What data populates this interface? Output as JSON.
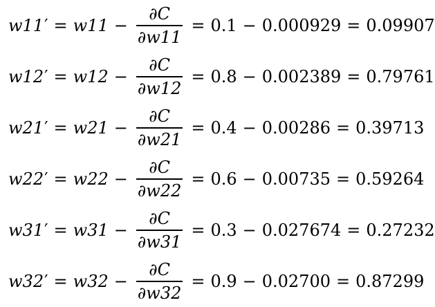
{
  "equations": [
    {
      "lhs_var": "w11",
      "prime": "′",
      "minus_var": "w11",
      "frac_num": "∂C",
      "frac_den": "∂w11",
      "value": "0.1",
      "gradient": "0.000929",
      "result": "0.09907"
    },
    {
      "lhs_var": "w12",
      "prime": "′",
      "minus_var": "w12",
      "frac_num": "∂C",
      "frac_den": "∂w12",
      "value": "0.8",
      "gradient": "0.002389",
      "result": "0.79761"
    },
    {
      "lhs_var": "w21",
      "prime": "′",
      "minus_var": "w21",
      "frac_num": "∂C",
      "frac_den": "∂w21",
      "value": "0.4",
      "gradient": "0.00286",
      "result": "0.39713"
    },
    {
      "lhs_var": "w22",
      "prime": "′",
      "minus_var": "w22",
      "frac_num": "∂C",
      "frac_den": "∂w22",
      "value": "0.6",
      "gradient": "0.00735",
      "result": "0.59264"
    },
    {
      "lhs_var": "w31",
      "prime": "′",
      "minus_var": "w31",
      "frac_num": "∂C",
      "frac_den": "∂w31",
      "value": "0.3",
      "gradient": "0.027674",
      "result": "0.27232"
    },
    {
      "lhs_var": "w32",
      "prime": "′",
      "minus_var": "w32",
      "frac_num": "∂C",
      "frac_den": "∂w32",
      "value": "0.9",
      "gradient": "0.02700",
      "result": "0.87299"
    }
  ],
  "symbols": {
    "equals": "=",
    "minus": "−"
  }
}
